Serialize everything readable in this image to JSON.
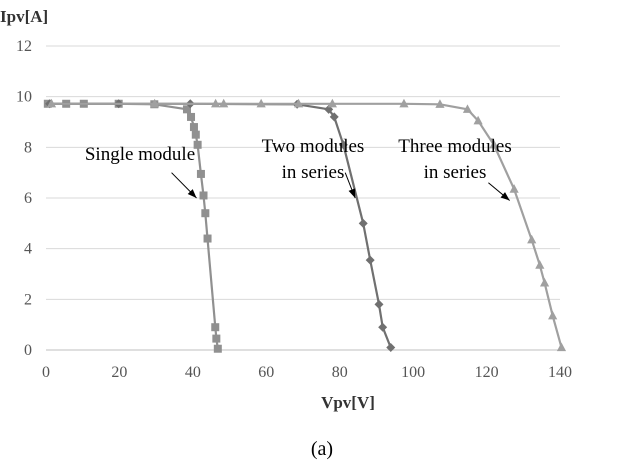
{
  "chart_data": {
    "type": "line",
    "title": "",
    "xlabel": "Vpv[V]",
    "ylabel": "Ipv[A]",
    "xlim": [
      0,
      140
    ],
    "ylim": [
      0,
      12
    ],
    "xticks": [
      0,
      20,
      40,
      60,
      80,
      100,
      120,
      140
    ],
    "yticks": [
      0,
      2,
      4,
      6,
      8,
      10,
      12
    ],
    "grid": "horizontal",
    "legend": "none",
    "caption": "(a)",
    "series": [
      {
        "color": "#909090",
        "marker": "square",
        "x": [
          0.5,
          5.5,
          10.3,
          19.8,
          29.5,
          38.4,
          39.5,
          40.3,
          40.8,
          41.3,
          42.2,
          42.9,
          43.4,
          44.0,
          46.1,
          46.4,
          46.8
        ],
        "y": [
          9.72,
          9.72,
          9.72,
          9.72,
          9.7,
          9.5,
          9.2,
          8.8,
          8.5,
          8.1,
          6.95,
          6.1,
          5.4,
          4.4,
          0.9,
          0.45,
          0.05
        ]
      },
      {
        "color": "#707070",
        "marker": "diamond",
        "x": [
          1.0,
          19.8,
          39.3,
          68.4,
          77.0,
          78.5,
          81.0,
          86.4,
          88.3,
          90.7,
          91.7,
          93.9
        ],
        "y": [
          9.72,
          9.72,
          9.72,
          9.7,
          9.5,
          9.2,
          8.1,
          5.0,
          3.55,
          1.8,
          0.9,
          0.1
        ]
      },
      {
        "color": "#a0a0a0",
        "marker": "triangle",
        "x": [
          1.5,
          29.6,
          46.2,
          48.4,
          58.6,
          68.8,
          78.0,
          97.5,
          107.3,
          114.8,
          117.7,
          122.0,
          127.5,
          132.3,
          134.5,
          135.8,
          138.0,
          140.4
        ],
        "y": [
          9.72,
          9.72,
          9.72,
          9.72,
          9.72,
          9.72,
          9.72,
          9.72,
          9.7,
          9.5,
          9.05,
          8.1,
          6.35,
          4.35,
          3.35,
          2.65,
          1.35,
          0.1
        ]
      }
    ],
    "annotations": [
      {
        "lines": [
          "Single module"
        ],
        "arrow_from": [
          34.2,
          7.0
        ],
        "arrow_to": [
          41.0,
          6.0
        ]
      },
      {
        "lines": [
          "Two modules",
          "in series"
        ],
        "arrow_from": [
          81.5,
          7.0
        ],
        "arrow_to": [
          84.2,
          6.0
        ]
      },
      {
        "lines": [
          "Three modules",
          "in series"
        ],
        "arrow_from": [
          120.5,
          6.6
        ],
        "arrow_to": [
          126.3,
          5.9
        ]
      }
    ]
  }
}
